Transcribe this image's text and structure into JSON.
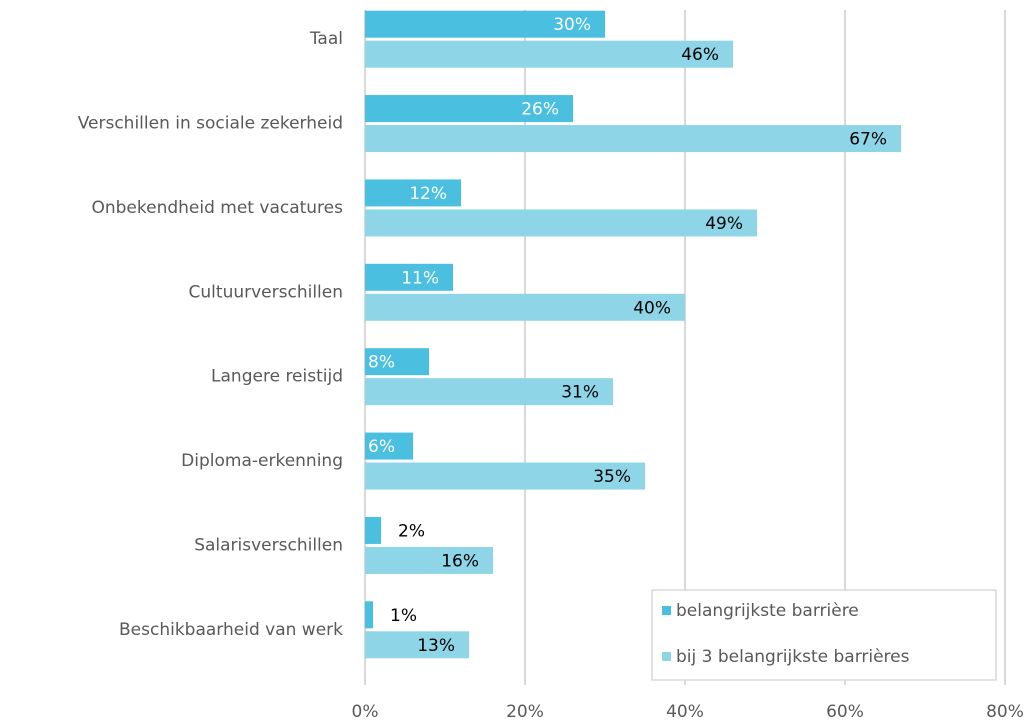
{
  "chart_data": {
    "type": "bar",
    "orientation": "horizontal",
    "categories": [
      "Taal",
      "Verschillen in sociale zekerheid",
      "Onbekendheid met vacatures",
      "Cultuurverschillen",
      "Langere reistijd",
      "Diploma-erkenning",
      "Salarisverschillen",
      "Beschikbaarheid van werk"
    ],
    "series": [
      {
        "name": "belangrijkste barrière",
        "color": "#4bbfe0",
        "values": [
          30,
          26,
          12,
          11,
          8,
          6,
          2,
          1
        ],
        "value_labels": [
          "30%",
          "26%",
          "12%",
          "11%",
          "8%",
          "6%",
          "2%",
          "1%"
        ]
      },
      {
        "name": "bij 3 belangrijkste barrières",
        "color": "#8dd5e7",
        "values": [
          46,
          67,
          49,
          40,
          31,
          35,
          16,
          13
        ],
        "value_labels": [
          "46%",
          "67%",
          "49%",
          "40%",
          "31%",
          "35%",
          "16%",
          "13%"
        ]
      }
    ],
    "xlim": [
      0,
      80
    ],
    "xticks": [
      {
        "value": 0,
        "label": "0%"
      },
      {
        "value": 20,
        "label": "20%"
      },
      {
        "value": 40,
        "label": "40%"
      },
      {
        "value": 60,
        "label": "60%"
      },
      {
        "value": 80,
        "label": "80%"
      }
    ],
    "grid": true,
    "legend": "lower right"
  }
}
